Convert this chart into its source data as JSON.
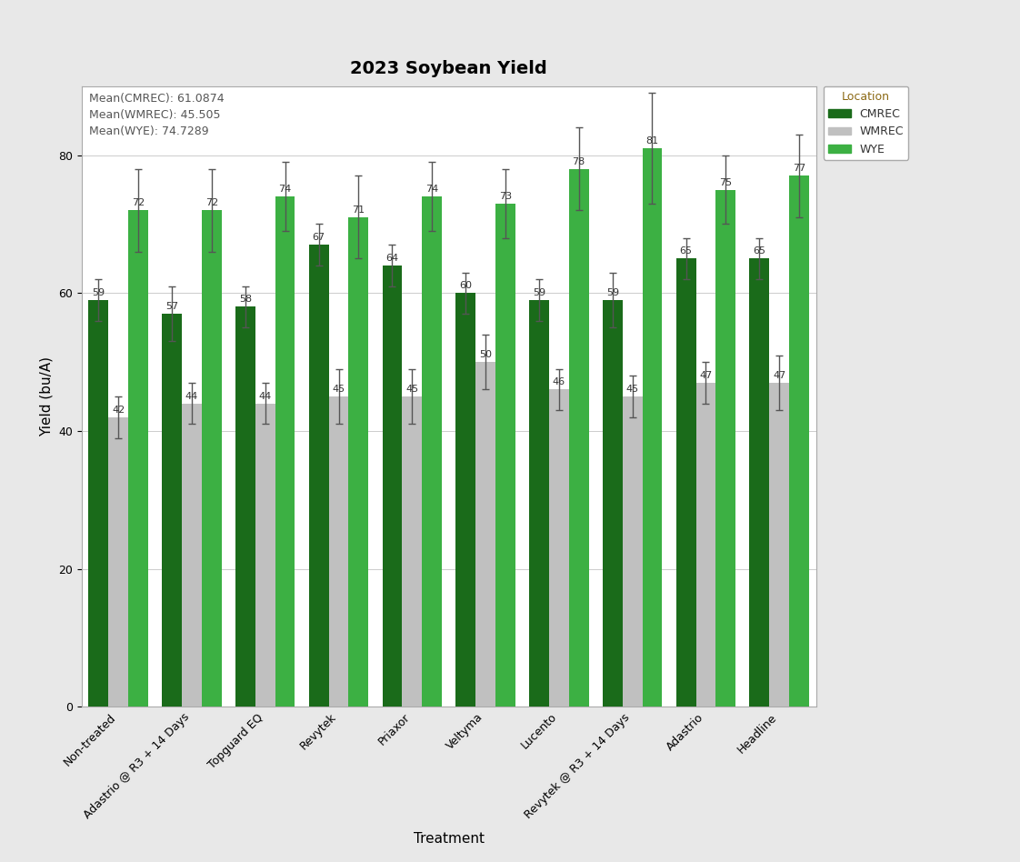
{
  "title": "2023 Soybean Yield",
  "xlabel": "Treatment",
  "ylabel": "Yield (bu/A)",
  "legend_title": "Location",
  "annotations": [
    "Mean(CMREC): 61.0874",
    "Mean(WMREC): 45.505",
    "Mean(WYE): 74.7289"
  ],
  "categories": [
    "Non-treated",
    "Adastrio @ R3 + 14 Days",
    "Topguard EQ",
    "Revytek",
    "Priaxor",
    "Veltyma",
    "Lucento",
    "Revytek @ R3 + 14 Days",
    "Adastrio",
    "Headline"
  ],
  "series": {
    "CMREC": {
      "values": [
        59,
        57,
        58,
        67,
        64,
        60,
        59,
        59,
        65,
        65
      ],
      "errors": [
        3,
        4,
        3,
        3,
        3,
        3,
        3,
        4,
        3,
        3
      ],
      "color": "#1a6b1a"
    },
    "WMREC": {
      "values": [
        42,
        44,
        44,
        45,
        45,
        50,
        46,
        45,
        47,
        47
      ],
      "errors": [
        3,
        3,
        3,
        4,
        4,
        4,
        3,
        3,
        3,
        4
      ],
      "color": "#c0c0c0"
    },
    "WYE": {
      "values": [
        72,
        72,
        74,
        71,
        74,
        73,
        78,
        81,
        75,
        77
      ],
      "errors": [
        6,
        6,
        5,
        6,
        5,
        5,
        6,
        8,
        5,
        6
      ],
      "color": "#3cb043"
    }
  },
  "ylim": [
    0,
    90
  ],
  "yticks": [
    0,
    20,
    40,
    60,
    80
  ],
  "outer_background": "#e8e8e8",
  "plot_background": "#ffffff",
  "bar_width": 0.27,
  "title_fontsize": 14,
  "axis_label_fontsize": 11,
  "tick_fontsize": 9,
  "annotation_fontsize": 9,
  "bar_label_fontsize": 8,
  "legend_fontsize": 9,
  "error_capsize": 3,
  "error_linewidth": 1.0,
  "error_color": "#555555"
}
